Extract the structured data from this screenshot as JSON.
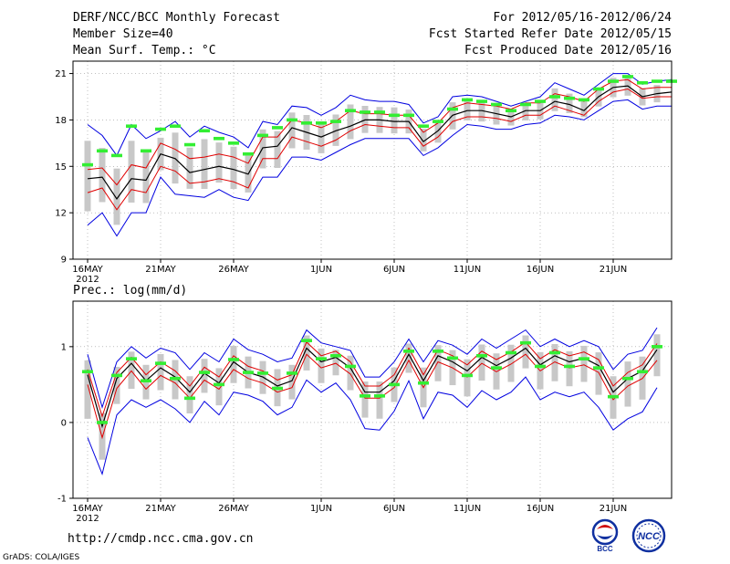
{
  "header": {
    "left": [
      "DERF/NCC/BCC Monthly Forecast",
      "Member Size=40",
      "Mean Surf. Temp.: °C"
    ],
    "right": [
      "For 2012/05/16-2012/06/24",
      "Fcst Started Refer Date 2012/05/15",
      "Fcst Produced Date 2012/05/16"
    ]
  },
  "footer": {
    "url": "http://cmdp.ncc.cma.gov.cn",
    "credit": "GrADS: COLA/IGES",
    "logo_left_text": "BCC",
    "logo_right_text": "NCC"
  },
  "colors": {
    "mean": "#000000",
    "spread": "#e00000",
    "extreme": "#0000e0",
    "box": "#c8c8c8",
    "obs": "#33ee33"
  },
  "chart_data": [
    {
      "type": "line",
      "title": "Mean Surf. Temp.: °C",
      "days": 40,
      "x_tick_labels": [
        "16MAY",
        "21MAY",
        "26MAY",
        "1JUN",
        "6JUN",
        "11JUN",
        "16JUN",
        "21JUN"
      ],
      "x_tick_days": [
        0,
        5,
        10,
        16,
        21,
        26,
        31,
        36
      ],
      "x_year_label": "2012",
      "ylim": [
        9,
        21.8
      ],
      "yticks": [
        9,
        12,
        15,
        18,
        21
      ],
      "series": [
        {
          "name": "ensemble mean",
          "color": "black",
          "values": [
            14.2,
            14.3,
            12.9,
            14.2,
            14.1,
            15.8,
            15.5,
            14.6,
            14.8,
            15.0,
            14.8,
            14.5,
            16.2,
            16.3,
            17.5,
            17.2,
            16.9,
            17.3,
            17.6,
            18.0,
            18.0,
            17.9,
            17.9,
            16.6,
            17.3,
            18.3,
            18.6,
            18.6,
            18.4,
            18.2,
            18.6,
            18.6,
            19.2,
            19.0,
            18.6,
            19.5,
            20.1,
            20.2,
            19.5,
            19.7,
            19.8
          ]
        },
        {
          "name": "ensemble mean + 1 sd",
          "color": "red",
          "values": [
            14.8,
            14.9,
            13.8,
            15.1,
            14.9,
            16.5,
            16.1,
            15.5,
            15.6,
            15.8,
            15.6,
            15.2,
            16.9,
            16.9,
            18.0,
            17.8,
            17.5,
            17.9,
            18.6,
            18.4,
            18.4,
            18.3,
            18.3,
            17.2,
            17.8,
            18.8,
            19.1,
            19.0,
            18.9,
            18.7,
            19.1,
            19.1,
            19.7,
            19.5,
            19.2,
            20.0,
            20.5,
            20.6,
            20.0,
            20.1,
            20.1
          ]
        },
        {
          "name": "ensemble mean - 1 sd",
          "color": "red",
          "values": [
            13.3,
            13.6,
            12.2,
            13.5,
            13.3,
            15.0,
            14.7,
            13.9,
            14.0,
            14.2,
            14.0,
            13.6,
            15.5,
            15.5,
            16.9,
            16.6,
            16.3,
            16.7,
            17.3,
            17.7,
            17.6,
            17.5,
            17.5,
            16.3,
            16.9,
            17.9,
            18.2,
            18.2,
            18.1,
            17.9,
            18.3,
            18.3,
            18.9,
            18.6,
            18.3,
            19.2,
            19.8,
            20.0,
            19.4,
            19.5,
            19.5
          ]
        },
        {
          "name": "ensemble max",
          "color": "blue",
          "values": [
            17.7,
            17.0,
            15.7,
            17.7,
            16.8,
            17.3,
            17.9,
            16.9,
            17.6,
            17.2,
            16.9,
            16.2,
            17.9,
            17.7,
            18.9,
            18.8,
            18.3,
            18.8,
            19.6,
            19.3,
            19.2,
            19.2,
            19.0,
            17.8,
            18.2,
            19.5,
            19.6,
            19.5,
            19.2,
            18.9,
            19.2,
            19.5,
            20.4,
            20.0,
            19.6,
            20.3,
            21.0,
            21.0,
            20.3,
            20.5,
            20.6
          ]
        },
        {
          "name": "ensemble min",
          "color": "blue",
          "values": [
            11.2,
            12.0,
            10.5,
            12.0,
            12.0,
            14.3,
            13.2,
            13.1,
            13.0,
            13.5,
            13.0,
            12.8,
            14.3,
            14.3,
            15.6,
            15.6,
            15.4,
            15.9,
            16.4,
            16.8,
            16.8,
            16.8,
            16.8,
            15.7,
            16.2,
            17.0,
            17.7,
            17.6,
            17.4,
            17.4,
            17.7,
            17.8,
            18.3,
            18.2,
            18.0,
            18.6,
            19.2,
            19.3,
            18.7,
            18.9,
            18.9
          ]
        },
        {
          "name": "observed",
          "color": "green",
          "values": [
            15.1,
            16.0,
            15.7,
            17.6,
            16.0,
            17.4,
            17.6,
            16.4,
            17.3,
            16.8,
            16.5,
            15.8,
            17.0,
            17.5,
            18.0,
            17.8,
            17.8,
            17.9,
            18.6,
            18.5,
            18.5,
            18.3,
            18.3,
            17.6,
            17.9,
            18.7,
            19.3,
            19.2,
            19.0,
            18.6,
            19.0,
            19.2,
            19.5,
            19.4,
            19.3,
            20.0,
            20.5,
            20.8,
            20.4,
            20.5,
            20.5
          ]
        }
      ]
    },
    {
      "type": "line",
      "title": "Prec.: log(mm/d)",
      "days": 40,
      "x_tick_labels": [
        "16MAY",
        "21MAY",
        "26MAY",
        "1JUN",
        "6JUN",
        "11JUN",
        "16JUN",
        "21JUN"
      ],
      "x_tick_days": [
        0,
        5,
        10,
        16,
        21,
        26,
        31,
        36
      ],
      "x_year_label": "2012",
      "ylim": [
        -1,
        1.6
      ],
      "yticks": [
        -1,
        0,
        1
      ],
      "series": [
        {
          "name": "ensemble mean",
          "color": "black",
          "values": [
            0.63,
            -0.05,
            0.58,
            0.78,
            0.55,
            0.72,
            0.6,
            0.4,
            0.65,
            0.52,
            0.8,
            0.66,
            0.6,
            0.48,
            0.55,
            0.98,
            0.8,
            0.86,
            0.72,
            0.4,
            0.4,
            0.55,
            0.9,
            0.55,
            0.88,
            0.8,
            0.68,
            0.86,
            0.75,
            0.85,
            0.98,
            0.76,
            0.88,
            0.8,
            0.85,
            0.75,
            0.4,
            0.58,
            0.68,
            0.96
          ]
        },
        {
          "name": "ensemble mean + 1 sd",
          "color": "red",
          "values": [
            0.7,
            0.08,
            0.66,
            0.86,
            0.63,
            0.8,
            0.68,
            0.48,
            0.73,
            0.6,
            0.88,
            0.74,
            0.68,
            0.56,
            0.63,
            1.06,
            0.88,
            0.94,
            0.8,
            0.48,
            0.48,
            0.63,
            0.98,
            0.63,
            0.96,
            0.88,
            0.76,
            0.94,
            0.83,
            0.93,
            1.06,
            0.84,
            0.96,
            0.88,
            0.93,
            0.83,
            0.48,
            0.66,
            0.76,
            1.04
          ]
        },
        {
          "name": "ensemble mean - 1 sd",
          "color": "red",
          "values": [
            0.5,
            -0.2,
            0.45,
            0.68,
            0.44,
            0.62,
            0.52,
            0.32,
            0.56,
            0.44,
            0.7,
            0.58,
            0.52,
            0.4,
            0.46,
            0.9,
            0.72,
            0.78,
            0.64,
            0.32,
            0.32,
            0.46,
            0.82,
            0.46,
            0.8,
            0.72,
            0.6,
            0.78,
            0.67,
            0.77,
            0.9,
            0.68,
            0.8,
            0.72,
            0.76,
            0.66,
            0.3,
            0.48,
            0.58,
            0.82
          ]
        },
        {
          "name": "ensemble max",
          "color": "blue",
          "values": [
            0.9,
            0.2,
            0.8,
            1.0,
            0.85,
            0.98,
            0.92,
            0.7,
            0.92,
            0.8,
            1.1,
            0.96,
            0.9,
            0.8,
            0.85,
            1.22,
            1.05,
            1.0,
            0.95,
            0.6,
            0.6,
            0.8,
            1.1,
            0.8,
            1.08,
            1.02,
            0.9,
            1.1,
            0.98,
            1.1,
            1.22,
            1.0,
            1.1,
            1.0,
            1.08,
            1.0,
            0.7,
            0.9,
            0.95,
            1.25
          ]
        },
        {
          "name": "ensemble min",
          "color": "blue",
          "values": [
            -0.2,
            -0.68,
            0.1,
            0.3,
            0.2,
            0.3,
            0.18,
            0.0,
            0.28,
            0.1,
            0.4,
            0.36,
            0.28,
            0.1,
            0.2,
            0.56,
            0.4,
            0.52,
            0.3,
            -0.08,
            -0.1,
            0.15,
            0.55,
            0.05,
            0.4,
            0.36,
            0.2,
            0.42,
            0.3,
            0.4,
            0.6,
            0.3,
            0.4,
            0.34,
            0.4,
            0.2,
            -0.1,
            0.05,
            0.14,
            0.46
          ]
        },
        {
          "name": "observed",
          "color": "green",
          "values": [
            0.67,
            0.0,
            0.62,
            0.84,
            0.55,
            0.78,
            0.58,
            0.32,
            0.66,
            0.5,
            0.83,
            0.66,
            0.65,
            0.45,
            0.65,
            1.08,
            0.84,
            0.88,
            0.74,
            0.35,
            0.35,
            0.5,
            0.94,
            0.52,
            0.94,
            0.85,
            0.62,
            0.88,
            0.72,
            0.92,
            1.05,
            0.74,
            0.92,
            0.74,
            0.84,
            0.72,
            0.34,
            0.58,
            0.67,
            1.0
          ]
        }
      ]
    }
  ]
}
